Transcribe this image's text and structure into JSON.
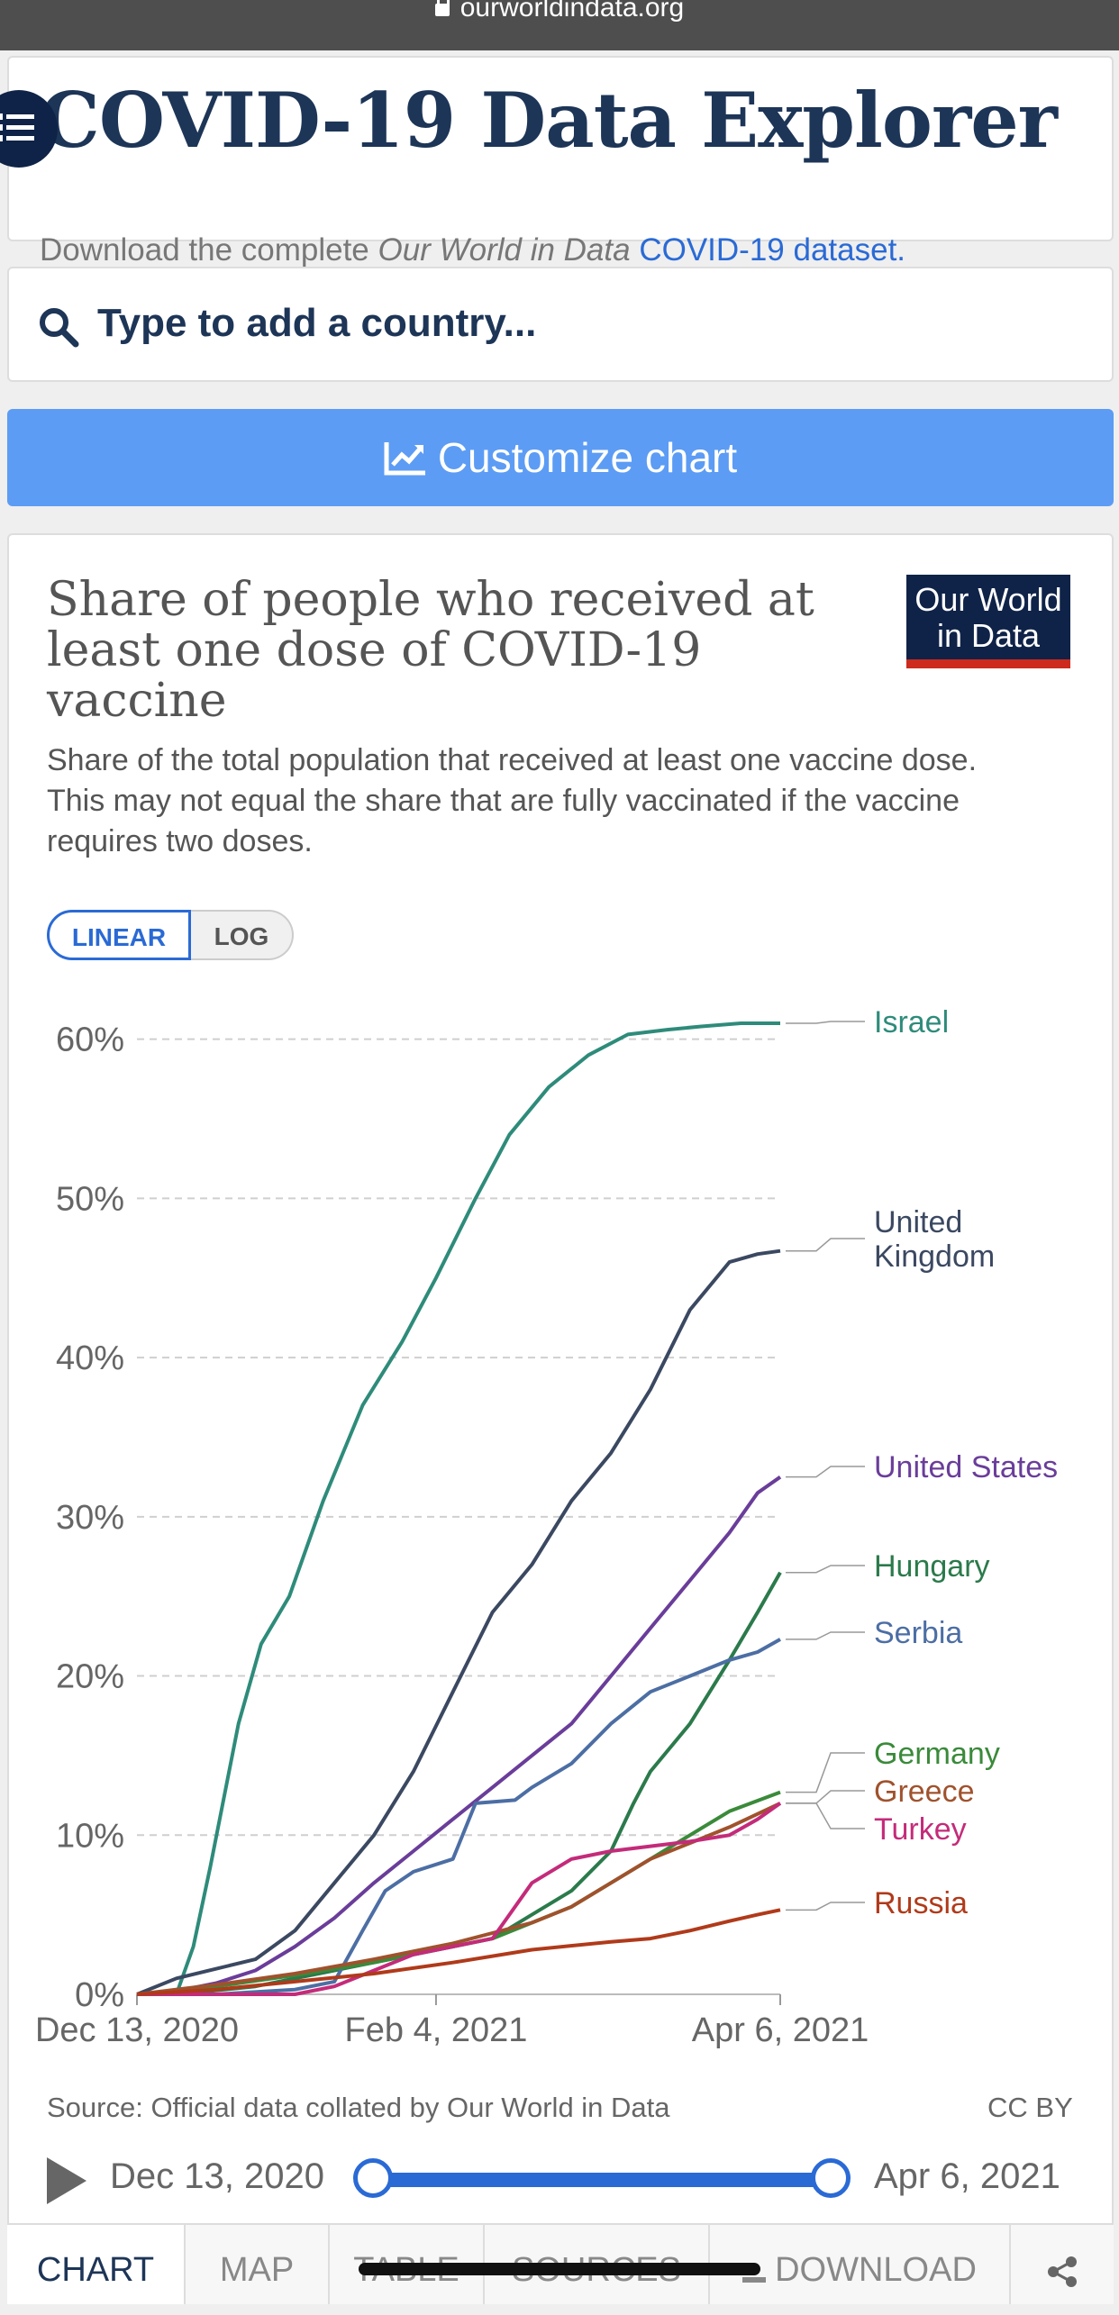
{
  "browser": {
    "url": "ourworldindata.org"
  },
  "header": {
    "title": "COVID-19 Data Explorer",
    "subtitle_prefix": "Download the complete ",
    "subtitle_italic": "Our World in Data",
    "subtitle_link": "COVID-19 dataset."
  },
  "search": {
    "placeholder": "Type to add a country..."
  },
  "customize_label": "Customize chart",
  "chart": {
    "title": "Share of people who received at least one dose of COVID-19 vaccine",
    "subtitle": "Share of the total population that received at least one vaccine dose. This may not equal the share that are fully vaccinated if the vaccine requires two doses.",
    "logo_line1": "Our World",
    "logo_line2": "in Data",
    "scale_linear": "LINEAR",
    "scale_log": "LOG",
    "source": "Source: Official data collated by Our World in Data",
    "license": "CC BY"
  },
  "timeline": {
    "start": "Dec 13, 2020",
    "end": "Apr 6, 2021"
  },
  "tabs": [
    "CHART",
    "MAP",
    "TABLE",
    "SOURCES",
    "DOWNLOAD"
  ],
  "chart_data": {
    "type": "line",
    "title": "Share of people who received at least one dose of COVID-19 vaccine",
    "ylabel": "",
    "xlabel": "",
    "ylim": [
      0,
      60
    ],
    "x_start": "Dec 13, 2020",
    "x_end": "Apr 6, 2021",
    "x_ticks": [
      {
        "day": 0,
        "label": "Dec 13, 2020"
      },
      {
        "day": 53,
        "label": "Feb 4, 2021"
      },
      {
        "day": 114,
        "label": "Apr 6, 2021"
      }
    ],
    "y_ticks": [
      {
        "value": 0,
        "label": "0%"
      },
      {
        "value": 10,
        "label": "10%"
      },
      {
        "value": 20,
        "label": "20%"
      },
      {
        "value": 30,
        "label": "30%"
      },
      {
        "value": 40,
        "label": "40%"
      },
      {
        "value": 50,
        "label": "50%"
      },
      {
        "value": 60,
        "label": "60%"
      }
    ],
    "series": [
      {
        "name": "Israel",
        "label_lines": [
          "Israel"
        ],
        "color": "#2e8b7a",
        "points": [
          [
            0,
            0
          ],
          [
            7,
            0
          ],
          [
            10,
            3
          ],
          [
            13,
            8
          ],
          [
            18,
            17
          ],
          [
            22,
            22
          ],
          [
            27,
            25
          ],
          [
            33,
            31
          ],
          [
            40,
            37
          ],
          [
            47,
            41
          ],
          [
            53,
            45
          ],
          [
            60,
            50
          ],
          [
            66,
            54
          ],
          [
            73,
            57
          ],
          [
            80,
            59
          ],
          [
            87,
            60.3
          ],
          [
            94,
            60.6
          ],
          [
            100,
            60.8
          ],
          [
            107,
            61
          ],
          [
            114,
            61
          ]
        ]
      },
      {
        "name": "United Kingdom",
        "label_lines": [
          "United",
          "Kingdom"
        ],
        "color": "#3b4861",
        "points": [
          [
            0,
            0
          ],
          [
            7,
            1
          ],
          [
            14,
            1.6
          ],
          [
            21,
            2.2
          ],
          [
            28,
            4
          ],
          [
            35,
            7
          ],
          [
            42,
            10
          ],
          [
            49,
            14
          ],
          [
            56,
            19
          ],
          [
            63,
            24
          ],
          [
            70,
            27
          ],
          [
            77,
            31
          ],
          [
            84,
            34
          ],
          [
            91,
            38
          ],
          [
            98,
            43
          ],
          [
            105,
            46
          ],
          [
            110,
            46.5
          ],
          [
            114,
            46.7
          ]
        ]
      },
      {
        "name": "United States",
        "label_lines": [
          "United States"
        ],
        "color": "#6a3d9a",
        "points": [
          [
            0,
            0
          ],
          [
            7,
            0.2
          ],
          [
            14,
            0.7
          ],
          [
            21,
            1.5
          ],
          [
            28,
            3
          ],
          [
            35,
            4.8
          ],
          [
            42,
            7
          ],
          [
            49,
            9
          ],
          [
            56,
            11
          ],
          [
            63,
            13
          ],
          [
            70,
            15
          ],
          [
            77,
            17
          ],
          [
            84,
            20
          ],
          [
            91,
            23
          ],
          [
            98,
            26
          ],
          [
            105,
            29
          ],
          [
            110,
            31.5
          ],
          [
            114,
            32.5
          ]
        ]
      },
      {
        "name": "Hungary",
        "label_lines": [
          "Hungary"
        ],
        "color": "#2b7a4b",
        "points": [
          [
            0,
            0
          ],
          [
            10,
            0.1
          ],
          [
            21,
            0.5
          ],
          [
            35,
            1.5
          ],
          [
            49,
            2.5
          ],
          [
            63,
            3.5
          ],
          [
            70,
            5
          ],
          [
            77,
            6.5
          ],
          [
            84,
            9
          ],
          [
            88,
            12
          ],
          [
            91,
            14
          ],
          [
            98,
            17
          ],
          [
            105,
            21
          ],
          [
            110,
            24
          ],
          [
            114,
            26.5
          ]
        ]
      },
      {
        "name": "Serbia",
        "label_lines": [
          "Serbia"
        ],
        "color": "#4c6ea4",
        "points": [
          [
            0,
            0
          ],
          [
            14,
            0
          ],
          [
            28,
            0.3
          ],
          [
            35,
            0.8
          ],
          [
            40,
            4
          ],
          [
            44,
            6.5
          ],
          [
            49,
            7.7
          ],
          [
            56,
            8.5
          ],
          [
            60,
            12
          ],
          [
            67,
            12.2
          ],
          [
            70,
            13
          ],
          [
            77,
            14.5
          ],
          [
            84,
            17
          ],
          [
            91,
            19
          ],
          [
            98,
            20
          ],
          [
            105,
            21
          ],
          [
            110,
            21.5
          ],
          [
            114,
            22.3
          ]
        ]
      },
      {
        "name": "Germany",
        "label_lines": [
          "Germany"
        ],
        "color": "#3a8a3a",
        "points": [
          [
            0,
            0
          ],
          [
            14,
            0.5
          ],
          [
            28,
            1.2
          ],
          [
            42,
            2
          ],
          [
            56,
            3
          ],
          [
            63,
            3.5
          ],
          [
            70,
            4.5
          ],
          [
            77,
            5.5
          ],
          [
            84,
            7
          ],
          [
            91,
            8.5
          ],
          [
            98,
            10
          ],
          [
            105,
            11.5
          ],
          [
            114,
            12.7
          ]
        ]
      },
      {
        "name": "Greece",
        "label_lines": [
          "Greece"
        ],
        "color": "#a0522d",
        "points": [
          [
            0,
            0
          ],
          [
            14,
            0.6
          ],
          [
            28,
            1.3
          ],
          [
            42,
            2.2
          ],
          [
            56,
            3.2
          ],
          [
            70,
            4.5
          ],
          [
            77,
            5.5
          ],
          [
            84,
            7
          ],
          [
            91,
            8.5
          ],
          [
            98,
            9.5
          ],
          [
            105,
            10.5
          ],
          [
            114,
            12
          ]
        ]
      },
      {
        "name": "Turkey",
        "label_lines": [
          "Turkey"
        ],
        "color": "#c42b7a",
        "points": [
          [
            0,
            0
          ],
          [
            28,
            0
          ],
          [
            35,
            0.5
          ],
          [
            42,
            1.5
          ],
          [
            49,
            2.5
          ],
          [
            56,
            3
          ],
          [
            63,
            3.5
          ],
          [
            66,
            5
          ],
          [
            70,
            7
          ],
          [
            77,
            8.5
          ],
          [
            84,
            9
          ],
          [
            91,
            9.3
          ],
          [
            98,
            9.6
          ],
          [
            105,
            10
          ],
          [
            110,
            11
          ],
          [
            114,
            12
          ]
        ]
      },
      {
        "name": "Russia",
        "label_lines": [
          "Russia"
        ],
        "color": "#b03a1a",
        "points": [
          [
            0,
            0
          ],
          [
            14,
            0.3
          ],
          [
            28,
            0.8
          ],
          [
            42,
            1.3
          ],
          [
            56,
            2
          ],
          [
            70,
            2.8
          ],
          [
            84,
            3.3
          ],
          [
            91,
            3.5
          ],
          [
            98,
            4
          ],
          [
            105,
            4.6
          ],
          [
            110,
            5
          ],
          [
            114,
            5.3
          ]
        ]
      }
    ]
  }
}
